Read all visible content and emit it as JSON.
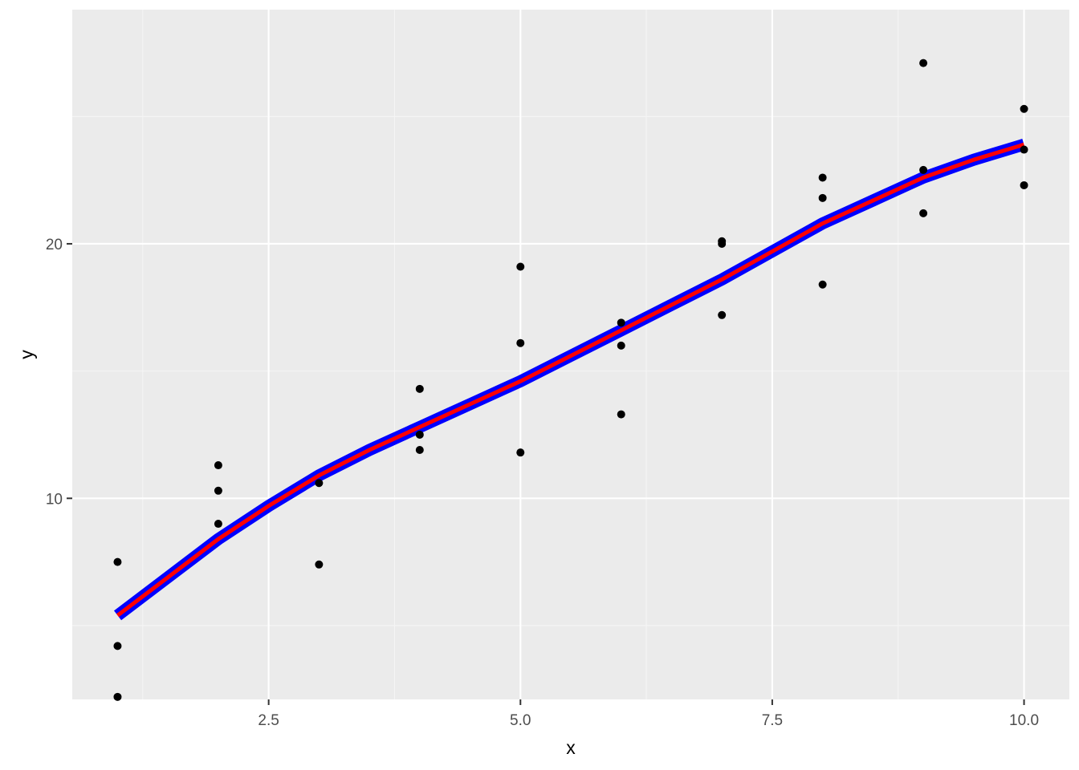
{
  "chart_data": {
    "type": "scatter",
    "xlabel": "x",
    "ylabel": "y",
    "xlim": [
      0.55,
      10.45
    ],
    "ylim": [
      2.1,
      29.2
    ],
    "x_ticks": [
      2.5,
      5.0,
      7.5,
      10.0
    ],
    "x_tick_labels": [
      "2.5",
      "5.0",
      "7.5",
      "10.0"
    ],
    "y_ticks": [
      10,
      20
    ],
    "y_tick_labels": [
      "10",
      "20"
    ],
    "grid": true,
    "legend": "none",
    "points": [
      {
        "x": 1,
        "y": 7.5
      },
      {
        "x": 1,
        "y": 4.2
      },
      {
        "x": 1,
        "y": 2.2
      },
      {
        "x": 2,
        "y": 11.3
      },
      {
        "x": 2,
        "y": 10.3
      },
      {
        "x": 2,
        "y": 9.0
      },
      {
        "x": 3,
        "y": 10.6
      },
      {
        "x": 3,
        "y": 7.4
      },
      {
        "x": 4,
        "y": 14.3
      },
      {
        "x": 4,
        "y": 12.5
      },
      {
        "x": 4,
        "y": 11.9
      },
      {
        "x": 5,
        "y": 19.1
      },
      {
        "x": 5,
        "y": 16.1
      },
      {
        "x": 5,
        "y": 11.8
      },
      {
        "x": 6,
        "y": 16.9
      },
      {
        "x": 6,
        "y": 16.0
      },
      {
        "x": 6,
        "y": 13.3
      },
      {
        "x": 7,
        "y": 20.1
      },
      {
        "x": 7,
        "y": 20.0
      },
      {
        "x": 7,
        "y": 17.2
      },
      {
        "x": 8,
        "y": 22.6
      },
      {
        "x": 8,
        "y": 21.8
      },
      {
        "x": 8,
        "y": 18.4
      },
      {
        "x": 9,
        "y": 27.1
      },
      {
        "x": 9,
        "y": 22.9
      },
      {
        "x": 9,
        "y": 21.2
      },
      {
        "x": 10,
        "y": 25.3
      },
      {
        "x": 10,
        "y": 23.7
      },
      {
        "x": 10,
        "y": 22.3
      }
    ],
    "series": [
      {
        "x": [
          1,
          1.5,
          2,
          2.5,
          3,
          3.5,
          4,
          4.5,
          5,
          5.5,
          6,
          6.5,
          7,
          7.5,
          8,
          8.5,
          9,
          9.5,
          10
        ],
        "y": [
          5.4,
          6.9,
          8.4,
          9.7,
          10.9,
          11.9,
          12.8,
          13.7,
          14.6,
          15.6,
          16.6,
          17.6,
          18.6,
          19.7,
          20.8,
          21.7,
          22.6,
          23.3,
          23.9
        ],
        "color": "#0000ff"
      },
      {
        "x": [
          1,
          1.5,
          2,
          2.5,
          3,
          3.5,
          4,
          4.5,
          5,
          5.5,
          6,
          6.5,
          7,
          7.5,
          8,
          8.5,
          9,
          9.5,
          10
        ],
        "y": [
          5.4,
          6.9,
          8.4,
          9.7,
          10.9,
          11.9,
          12.8,
          13.7,
          14.6,
          15.6,
          16.6,
          17.6,
          18.6,
          19.7,
          20.8,
          21.7,
          22.6,
          23.3,
          23.9
        ],
        "color": "#ff0000"
      }
    ],
    "colors": {
      "panel_background": "#ebebeb",
      "grid_major": "#ffffff",
      "grid_minor": "#f5f5f5",
      "point": "#000000"
    }
  }
}
